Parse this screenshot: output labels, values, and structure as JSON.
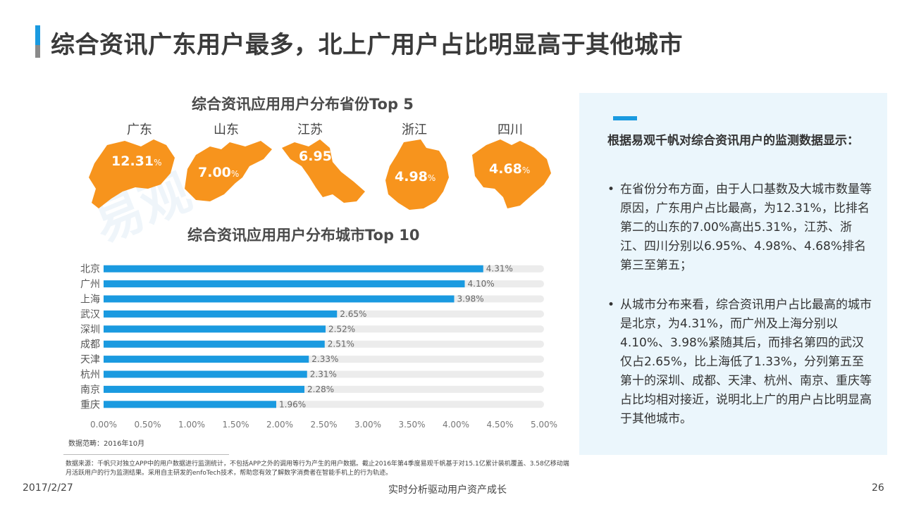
{
  "title": "综合资讯广东用户最多，北上广用户占比明显高于其他城市",
  "provinces": {
    "title": "综合资讯应用用户分布省份Top 5",
    "items": [
      {
        "name": "广东",
        "value": "12.31",
        "unit": "%"
      },
      {
        "name": "山东",
        "value": "7.00",
        "unit": "%"
      },
      {
        "name": "江苏",
        "value": "6.95",
        "unit": "%"
      },
      {
        "name": "浙江",
        "value": "4.98",
        "unit": "%"
      },
      {
        "name": "四川",
        "value": "4.68",
        "unit": "%"
      }
    ],
    "color": "#f7941d"
  },
  "chart_data": {
    "type": "bar",
    "orientation": "horizontal",
    "title": "综合资讯应用用户分布城市Top 10",
    "categories": [
      "北京",
      "广州",
      "上海",
      "武汉",
      "深圳",
      "成都",
      "天津",
      "杭州",
      "南京",
      "重庆"
    ],
    "values": [
      4.31,
      4.1,
      3.98,
      2.65,
      2.52,
      2.51,
      2.33,
      2.31,
      2.28,
      1.96
    ],
    "value_labels": [
      "4.31%",
      "4.10%",
      "3.98%",
      "2.65%",
      "2.52%",
      "2.51%",
      "2.33%",
      "2.31%",
      "2.28%",
      "1.96%"
    ],
    "xlim": [
      0,
      5
    ],
    "xticks": [
      "0.00%",
      "0.50%",
      "1.00%",
      "1.50%",
      "2.00%",
      "2.50%",
      "3.00%",
      "3.50%",
      "4.00%",
      "4.50%",
      "5.00%"
    ],
    "bar_color": "#1a9ae0",
    "track_color": "#ececec",
    "grid": false
  },
  "notes": {
    "range": "数据范畴：2016年10月",
    "source": "数据来源：千帆只对独立APP中的用户数据进行监测统计，不包括APP之外的调用等行为产生的用户数据。截止2016年第4季度易观千帆基于对15.1亿累计装机覆盖、3.58亿移动端月活跃用户的行为监测结果。采用自主研发的enfoTech技术，帮助您有效了解数字消费者在智能手机上的行为轨迹。"
  },
  "panel": {
    "heading": "根据易观千帆对综合资讯用户的监测数据显示：",
    "bullets": [
      "在省份分布方面，由于人口基数及大城市数量等原因，广东用户占比最高，为12.31%，比排名第二的山东的7.00%高出5.31%，江苏、浙江、四川分别以6.95%、4.98%、4.68%排名第三至第五；",
      "从城市分布来看，综合资讯用户占比最高的城市是北京，为4.31%，而广州及上海分别以4.10%、3.98%紧随其后，而排名第四的武汉仅占2.65%，比上海低了1.33%，分列第五至第十的深圳、成都、天津、杭州、南京、重庆等占比均相对接近，说明北上广的用户占比明显高于其他城市。"
    ]
  },
  "watermark": "易观",
  "footer": {
    "date": "2017/2/27",
    "center": "实时分析驱动用户资产成长",
    "page": "26"
  },
  "colors": {
    "accent": "#1a9ae0",
    "orange": "#f7941d",
    "panel_bg": "#ebf6fc"
  }
}
